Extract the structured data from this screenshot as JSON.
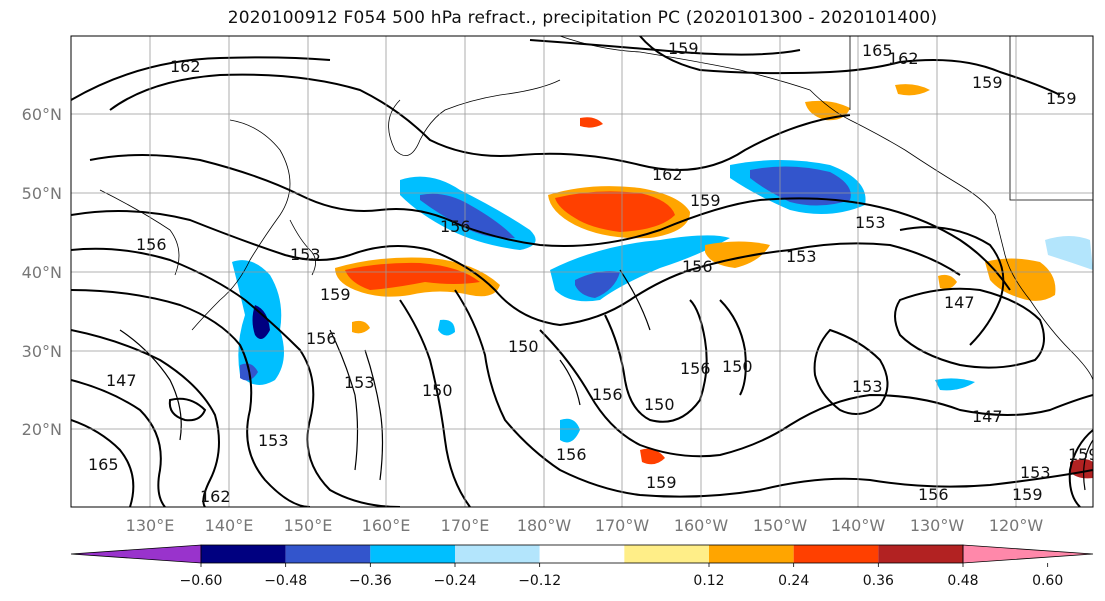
{
  "title": "2020100912 F054 500 hPa refract., precipitation PC (2020101300 - 2020101400)",
  "latitude_labels": [
    "60°N",
    "50°N",
    "40°N",
    "30°N",
    "20°N"
  ],
  "longitude_labels": [
    "130°E",
    "140°E",
    "150°E",
    "160°E",
    "170°E",
    "180°W",
    "170°W",
    "160°W",
    "150°W",
    "140°W",
    "130°W",
    "120°W"
  ],
  "contour_labels": [
    "162",
    "159",
    "165",
    "162",
    "159",
    "159",
    "162",
    "159",
    "156",
    "153",
    "156",
    "153",
    "156",
    "153",
    "159",
    "156",
    "150",
    "156",
    "147",
    "153",
    "150",
    "147",
    "153",
    "150",
    "156",
    "153",
    "156",
    "159",
    "150",
    "156",
    "162",
    "147",
    "153",
    "159",
    "159",
    "165"
  ],
  "colorbar": {
    "ticks": [
      "−0.60",
      "−0.48",
      "−0.36",
      "−0.24",
      "−0.12",
      "0.12",
      "0.24",
      "0.36",
      "0.48",
      "0.60"
    ],
    "colors": [
      "#9933cc",
      "#000080",
      "#3355cc",
      "#00bfff",
      "#b3e5fc",
      "#ffffff",
      "#ffee88",
      "#ffa500",
      "#ff4000",
      "#b22222",
      "#ff88aa"
    ]
  }
}
